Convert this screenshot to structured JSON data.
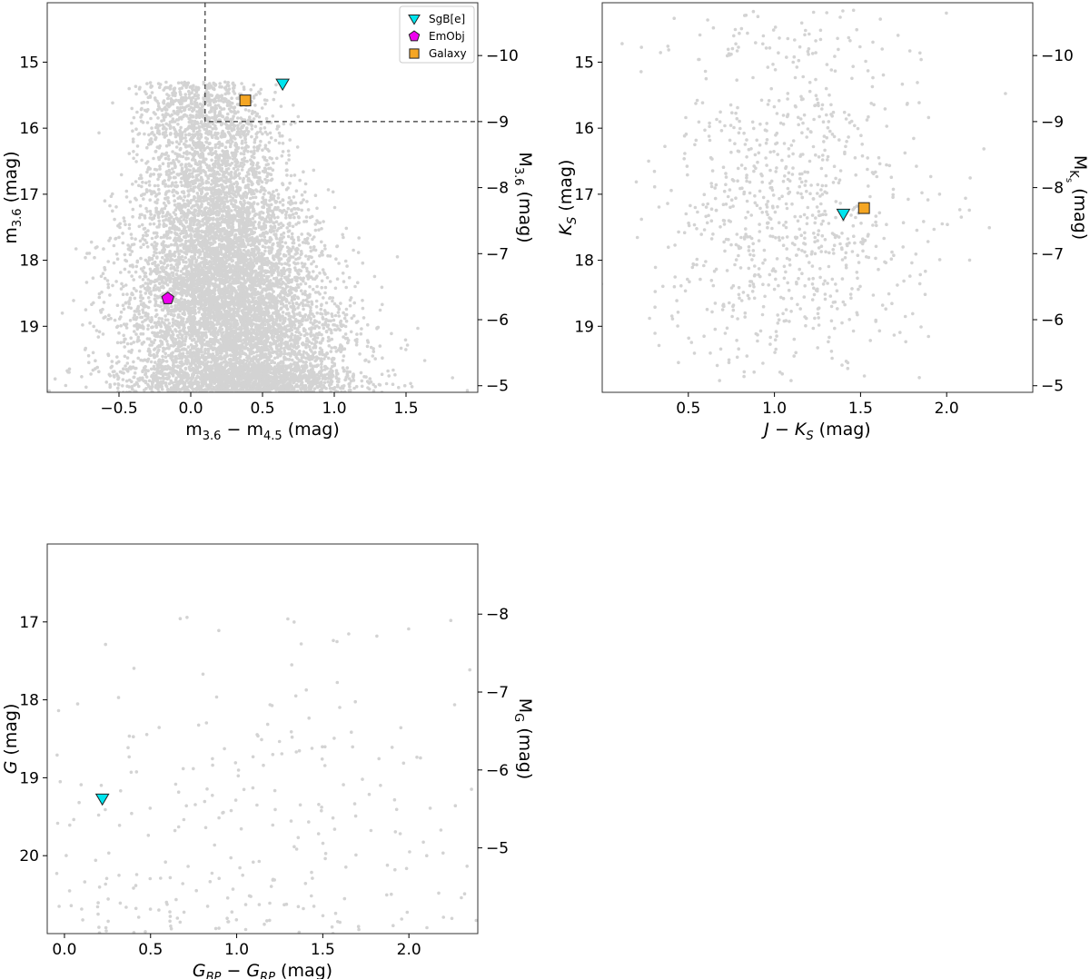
{
  "chart_data": [
    {
      "type": "scatter",
      "id": "p1",
      "title": "",
      "xlabel": {
        "base": "m",
        "sub": "3.6",
        "mid": " − m",
        "sub2": "4.5",
        "tail": " (mag)"
      },
      "ylabel": {
        "base": "m",
        "sub": "3.6",
        "tail": " (mag)"
      },
      "ylabel_right": {
        "base": "M",
        "sub": "3.6",
        "tail": " (mag)"
      },
      "xlim": [
        -1.0,
        2.0
      ],
      "ylim": [
        20.0,
        14.1
      ],
      "y_inverted": true,
      "right_axis_offset": -24.9,
      "xticks": [
        -0.5,
        0.0,
        0.5,
        1.0,
        1.5
      ],
      "xtick_labels": [
        "−0.5",
        "0.0",
        "0.5",
        "1.0",
        "1.5"
      ],
      "yticks": [
        15,
        16,
        17,
        18,
        19
      ],
      "ytick_labels": [
        "15",
        "16",
        "17",
        "18",
        "19"
      ],
      "yticks_right": [
        -10,
        -9,
        -8,
        -7,
        -6,
        -5
      ],
      "ytick_labels_right": [
        "−10",
        "−9",
        "−8",
        "−7",
        "−6",
        "−5"
      ],
      "grid": false,
      "background_population": {
        "color": "#d3d3d3",
        "approx_count": 9000,
        "x_center": 0.18,
        "x_spread": 0.36,
        "y_min": 15.3,
        "y_max": 20.0,
        "density_peak_y": 19.5
      },
      "cut_box": {
        "x_min": 0.1,
        "y_max": 15.9,
        "style": "dashed"
      },
      "objects": [
        {
          "name": "SgB[e]",
          "marker": "triangle-down",
          "color": "#00e5ee",
          "x": 0.64,
          "y": 15.33
        },
        {
          "name": "EmObj",
          "marker": "pentagon",
          "color": "#ee00ee",
          "x": -0.16,
          "y": 18.58
        },
        {
          "name": "Galaxy",
          "marker": "square",
          "color": "#f5a623",
          "x": 0.38,
          "y": 15.58
        }
      ],
      "legend": {
        "position": "top-right",
        "entries": [
          "SgB[e]",
          "EmObj",
          "Galaxy"
        ]
      }
    },
    {
      "type": "scatter",
      "id": "p2",
      "title": "",
      "xlabel": {
        "base": "J − K",
        "sub": "S",
        "tail": " (mag)",
        "italic": true
      },
      "ylabel": {
        "base": "K",
        "sub": "S",
        "tail": " (mag)",
        "italic": true
      },
      "ylabel_right": {
        "base": "M",
        "sub": "K",
        "subsub": "s",
        "tail": " (mag)"
      },
      "xlim": [
        0.0,
        2.5
      ],
      "ylim": [
        20.0,
        14.1
      ],
      "y_inverted": true,
      "right_axis_offset": -24.9,
      "xticks": [
        0.5,
        1.0,
        1.5,
        2.0
      ],
      "xtick_labels": [
        "0.5",
        "1.0",
        "1.5",
        "2.0"
      ],
      "yticks": [
        15,
        16,
        17,
        18,
        19
      ],
      "ytick_labels": [
        "15",
        "16",
        "17",
        "18",
        "19"
      ],
      "yticks_right": [
        -10,
        -9,
        -8,
        -7,
        -6,
        -5
      ],
      "ytick_labels_right": [
        "−10",
        "−9",
        "−8",
        "−7",
        "−6",
        "−5"
      ],
      "grid": false,
      "background_population": {
        "color": "#d3d3d3",
        "approx_count": 900,
        "x_center": 1.1,
        "x_spread": 0.38,
        "y_min": 14.2,
        "y_max": 19.9,
        "density_peak_y": 18.2
      },
      "objects": [
        {
          "name": "SgB[e]",
          "marker": "triangle-down",
          "color": "#00e5ee",
          "x": 1.4,
          "y": 17.3
        },
        {
          "name": "Galaxy",
          "marker": "square",
          "color": "#f5a623",
          "x": 1.52,
          "y": 17.21
        }
      ]
    },
    {
      "type": "scatter",
      "id": "p3",
      "title": "",
      "xlabel": {
        "base": "G",
        "sub": "BP",
        "mid": " − G",
        "sub2": "RP",
        "tail": " (mag)",
        "italic": true
      },
      "ylabel": {
        "base": "G",
        "tail": " (mag)",
        "italic": true
      },
      "ylabel_right": {
        "base": "M",
        "sub": "G",
        "tail": " (mag)"
      },
      "xlim": [
        -0.1,
        2.4
      ],
      "ylim": [
        21.0,
        16.0
      ],
      "y_inverted": true,
      "right_axis_offset": -24.9,
      "xticks": [
        0.0,
        0.5,
        1.0,
        1.5,
        2.0
      ],
      "xtick_labels": [
        "0.0",
        "0.5",
        "1.0",
        "1.5",
        "2.0"
      ],
      "yticks": [
        17,
        18,
        19,
        20
      ],
      "ytick_labels": [
        "17",
        "18",
        "19",
        "20"
      ],
      "yticks_right": [
        -8,
        -7,
        -6,
        -5
      ],
      "ytick_labels_right": [
        "−8",
        "−7",
        "−6",
        "−5"
      ],
      "grid": false,
      "background_population": {
        "color": "#d3d3d3",
        "approx_count": 300,
        "x_center": 1.0,
        "x_spread": 0.8,
        "y_min": 16.9,
        "y_max": 21.0,
        "density_peak_y": 20.7
      },
      "objects": [
        {
          "name": "SgB[e]",
          "marker": "triangle-down",
          "color": "#00e5ee",
          "x": 0.22,
          "y": 19.27
        }
      ]
    }
  ]
}
